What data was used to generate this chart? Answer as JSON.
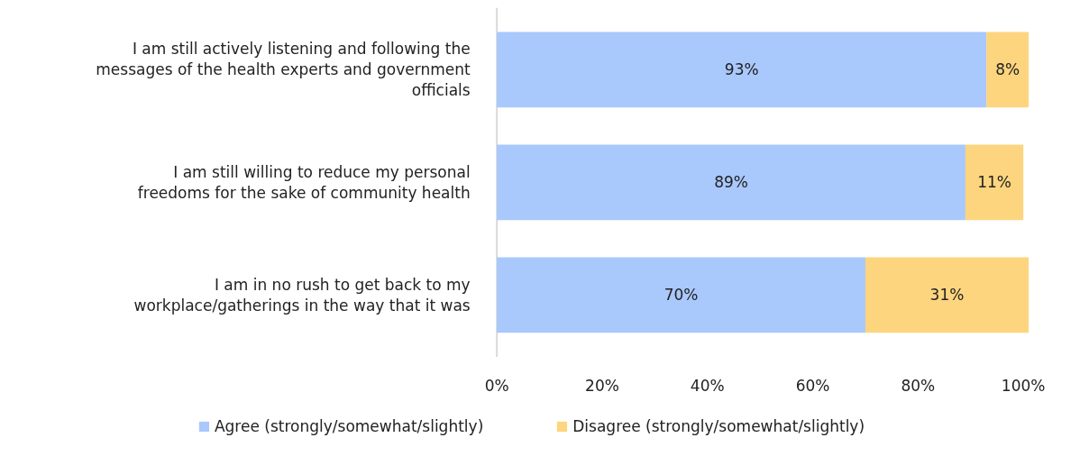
{
  "chart_data": {
    "type": "bar",
    "orientation": "horizontal",
    "stacked": true,
    "categories": [
      "I am still actively listening and following the messages of the health experts and government officials",
      "I am still willing to reduce my personal freedoms for the sake of community health",
      "I am in no rush to get back to my workplace/gatherings in the way that it was"
    ],
    "series": [
      {
        "name": "Agree (strongly/somewhat/slightly)",
        "color": "#a9c8fc",
        "values": [
          93,
          89,
          70
        ],
        "value_labels": [
          "93%",
          "89%",
          "70%"
        ]
      },
      {
        "name": "Disagree (strongly/somewhat/slightly)",
        "color": "#fdd57e",
        "values": [
          8,
          11,
          31
        ],
        "value_labels": [
          "8%",
          "11%",
          "31%"
        ]
      }
    ],
    "xlim": [
      0,
      101
    ],
    "xticks": [
      {
        "value": 0,
        "label": "0%"
      },
      {
        "value": 20,
        "label": "20%"
      },
      {
        "value": 40,
        "label": "40%"
      },
      {
        "value": 60,
        "label": "60%"
      },
      {
        "value": 80,
        "label": "80%"
      },
      {
        "value": 100,
        "label": "100%"
      }
    ],
    "legend": "bottom"
  }
}
